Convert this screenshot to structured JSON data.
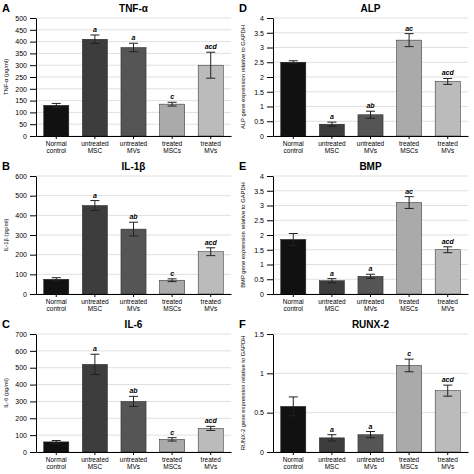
{
  "chart_data": [
    {
      "type": "bar",
      "panel_label": "A",
      "title": "TNF-α",
      "ylabel": "TNF-α (pg/ml)",
      "categories": [
        "Normal\ncontrol",
        "untreated\nMSC",
        "untreated\nMVs",
        "treated\nMSCs",
        "treated\nMVs"
      ],
      "values": [
        130,
        410,
        375,
        135,
        300
      ],
      "errors": [
        8,
        18,
        18,
        8,
        55
      ],
      "colors": [
        "#111111",
        "#3d3d3d",
        "#555555",
        "#aaaaaa",
        "#bbbbbb"
      ],
      "annotations": [
        null,
        "a",
        "a",
        "c",
        "acd"
      ],
      "ylim": [
        0,
        500
      ],
      "yticks": [
        0,
        50,
        100,
        150,
        200,
        250,
        300,
        350,
        400,
        450,
        500
      ],
      "grid": true
    },
    {
      "type": "bar",
      "panel_label": "D",
      "title": "ALP",
      "ylabel": "ALP gene expression relative to GAPDH",
      "categories": [
        "Normal\ncontrol",
        "untreated\nMSC",
        "untreated\nMVs",
        "treated\nMSCs",
        "treated\nMVs"
      ],
      "values": [
        2.5,
        0.4,
        0.72,
        3.25,
        1.85
      ],
      "errors": [
        0.05,
        0.07,
        0.12,
        0.22,
        0.1
      ],
      "colors": [
        "#111111",
        "#3d3d3d",
        "#555555",
        "#aaaaaa",
        "#bbbbbb"
      ],
      "annotations": [
        null,
        "a",
        "ab",
        "ac",
        "acd"
      ],
      "ylim": [
        0,
        4
      ],
      "yticks": [
        0,
        0.5,
        1,
        1.5,
        2,
        2.5,
        3,
        3.5,
        4
      ],
      "grid": true
    },
    {
      "type": "bar",
      "panel_label": "B",
      "title": "IL-1β",
      "ylabel": "IL-1β (pg/ml)",
      "categories": [
        "Normal\ncontrol",
        "untreated\nMSC",
        "untreated\nMVs",
        "treated\nMSCs",
        "treated\nMVs"
      ],
      "values": [
        75,
        450,
        330,
        70,
        215
      ],
      "errors": [
        8,
        25,
        35,
        7,
        20
      ],
      "colors": [
        "#111111",
        "#3d3d3d",
        "#555555",
        "#aaaaaa",
        "#bbbbbb"
      ],
      "annotations": [
        null,
        "a",
        "ab",
        "c",
        "acd"
      ],
      "ylim": [
        0,
        600
      ],
      "yticks": [
        0,
        100,
        200,
        300,
        400,
        500,
        600
      ],
      "grid": true
    },
    {
      "type": "bar",
      "panel_label": "E",
      "title": "BMP",
      "ylabel": "BMP gene expression relative to GAPDH",
      "categories": [
        "Normal\ncontrol",
        "untreated\nMSC",
        "untreated\nMVs",
        "treated\nMSCs",
        "treated\nMVs"
      ],
      "values": [
        1.85,
        0.45,
        0.6,
        3.1,
        1.5
      ],
      "errors": [
        0.2,
        0.07,
        0.07,
        0.2,
        0.1
      ],
      "colors": [
        "#111111",
        "#3d3d3d",
        "#555555",
        "#aaaaaa",
        "#bbbbbb"
      ],
      "annotations": [
        null,
        "a",
        "a",
        "ac",
        "acd"
      ],
      "ylim": [
        0,
        4
      ],
      "yticks": [
        0,
        0.5,
        1,
        1.5,
        2,
        2.5,
        3,
        3.5,
        4
      ],
      "grid": true
    },
    {
      "type": "bar",
      "panel_label": "C",
      "title": "IL-6",
      "ylabel": "IL-6 (pg/ml)",
      "categories": [
        "Normal\ncontrol",
        "untreated\nMSC",
        "untreated\nMVs",
        "treated\nMSCs",
        "treated\nMVs"
      ],
      "values": [
        60,
        520,
        300,
        75,
        140
      ],
      "errors": [
        8,
        60,
        30,
        10,
        12
      ],
      "colors": [
        "#111111",
        "#3d3d3d",
        "#555555",
        "#aaaaaa",
        "#bbbbbb"
      ],
      "annotations": [
        null,
        "a",
        "ab",
        "c",
        "acd"
      ],
      "ylim": [
        0,
        700
      ],
      "yticks": [
        0,
        100,
        200,
        300,
        400,
        500,
        600,
        700
      ],
      "grid": true
    },
    {
      "type": "bar",
      "panel_label": "F",
      "title": "RUNX-2",
      "ylabel": "RUNX-2 gene expression relative to GAPDH",
      "categories": [
        "Normal\ncontrol",
        "untreated\nMSC",
        "untreated\nMVs",
        "treated\nMSCs",
        "treated\nMVs"
      ],
      "values": [
        0.58,
        0.18,
        0.22,
        1.1,
        0.78
      ],
      "errors": [
        0.12,
        0.04,
        0.04,
        0.08,
        0.07
      ],
      "colors": [
        "#111111",
        "#3d3d3d",
        "#555555",
        "#aaaaaa",
        "#bbbbbb"
      ],
      "annotations": [
        null,
        "a",
        "a",
        "c",
        "acd"
      ],
      "ylim": [
        0,
        1.5
      ],
      "yticks": [
        0,
        0.5,
        1,
        1.5
      ],
      "grid": true
    }
  ]
}
